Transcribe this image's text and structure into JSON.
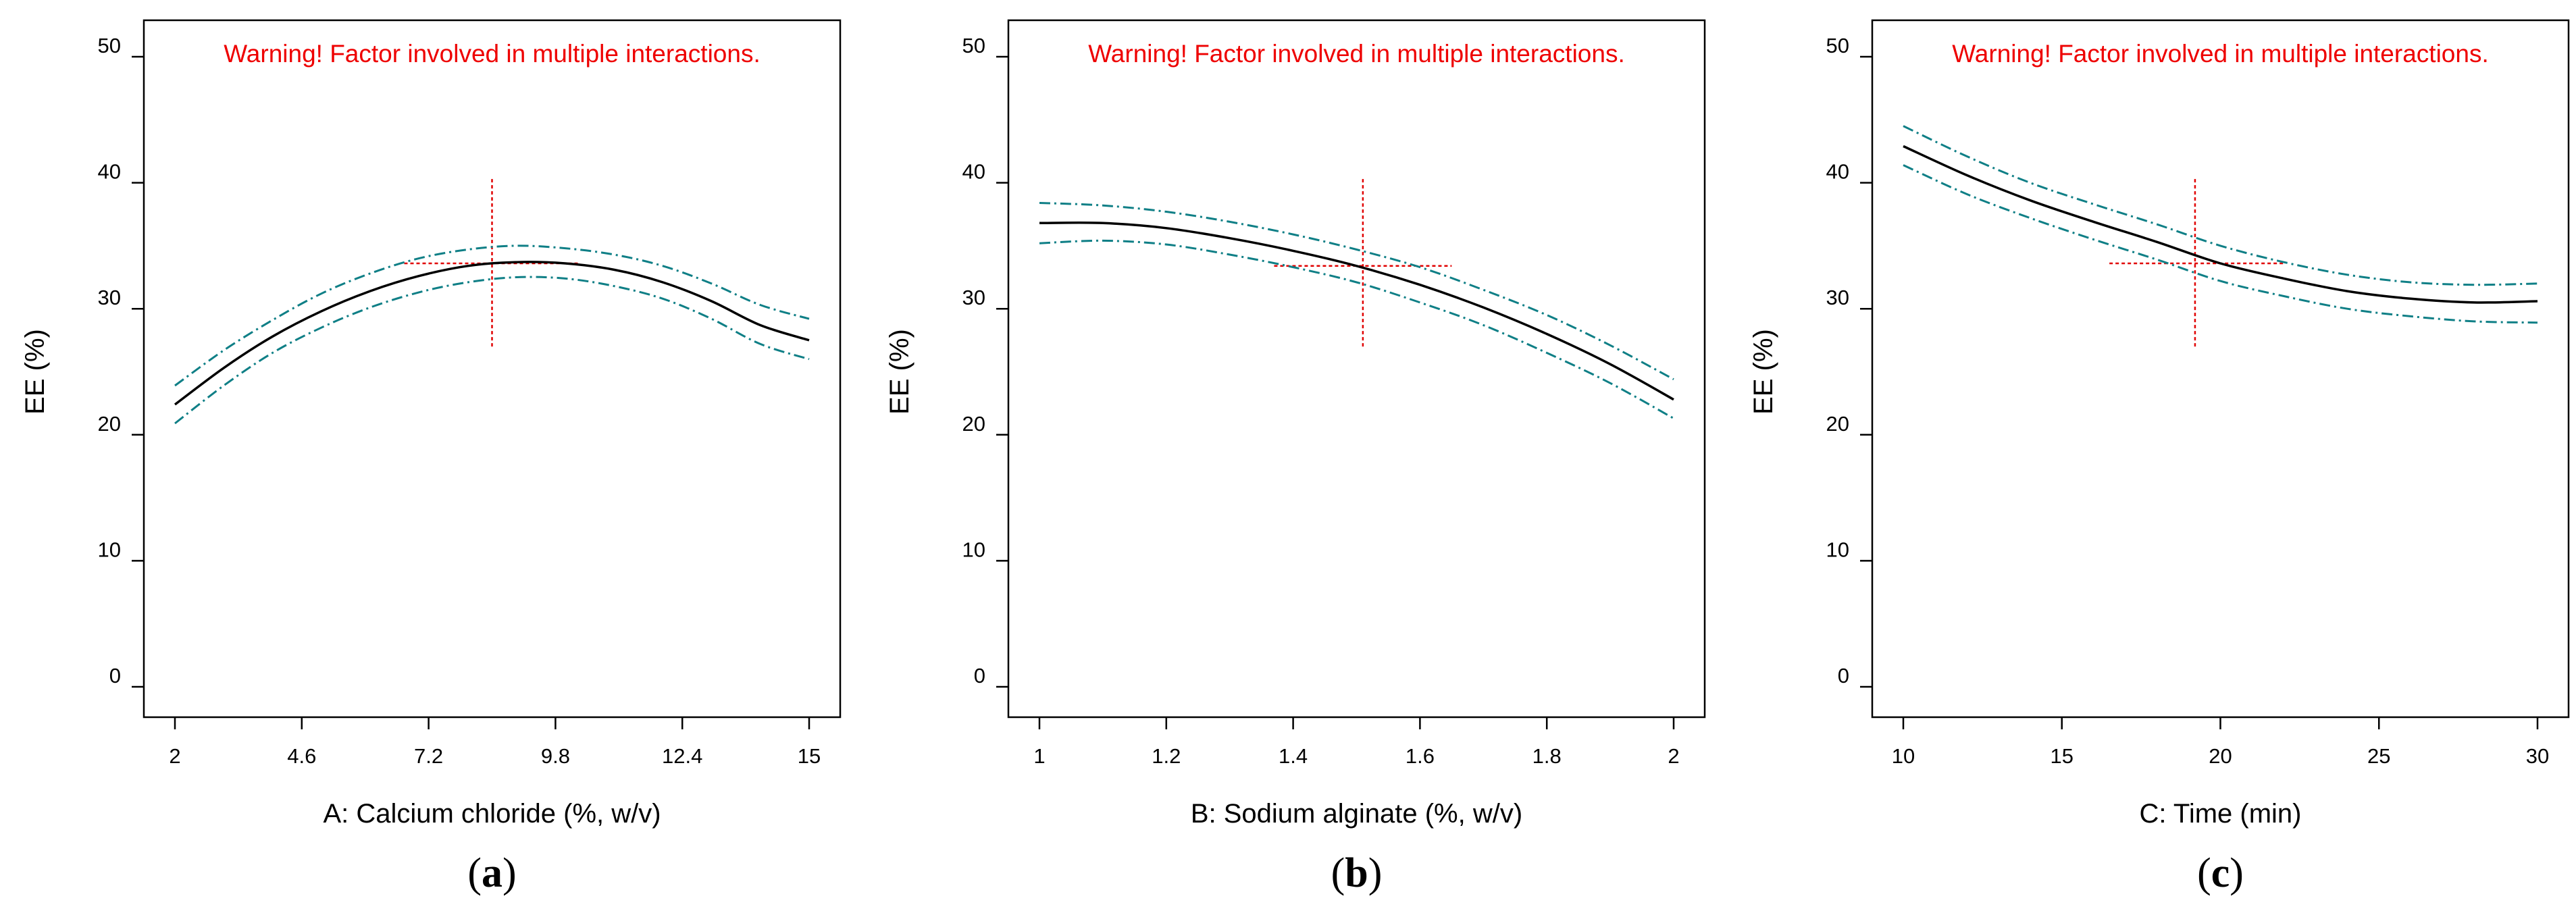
{
  "chart_data": [
    {
      "type": "line",
      "panel_label": "a",
      "warning": "Warning! Factor involved in multiple interactions.",
      "xlabel": "A: Calcium chloride (%, w/v)",
      "ylabel": "EE  (%)",
      "xlim": [
        2,
        15
      ],
      "ylim": [
        0,
        50
      ],
      "x_ticks": [
        "2",
        "4.6",
        "7.2",
        "9.8",
        "12.4",
        "15"
      ],
      "x_tick_values": [
        2,
        4.6,
        7.2,
        9.8,
        12.4,
        15
      ],
      "y_ticks": [
        "0",
        "10",
        "20",
        "30",
        "40",
        "50"
      ],
      "y_tick_values": [
        0,
        10,
        20,
        30,
        40,
        50
      ],
      "x": [
        2,
        3,
        4,
        5,
        6,
        7,
        8,
        9,
        10,
        11,
        12,
        13,
        14,
        15
      ],
      "series": [
        {
          "name": "prediction",
          "values": [
            22.4,
            25.3,
            27.8,
            29.8,
            31.4,
            32.6,
            33.4,
            33.7,
            33.6,
            33.1,
            32.1,
            30.6,
            28.7,
            27.5
          ]
        },
        {
          "name": "upper 95% CI",
          "values": [
            23.9,
            26.7,
            29.1,
            31.2,
            32.8,
            34.0,
            34.7,
            35.0,
            34.8,
            34.3,
            33.4,
            32.0,
            30.3,
            29.2
          ]
        },
        {
          "name": "lower 95% CI",
          "values": [
            20.9,
            23.9,
            26.5,
            28.5,
            30.1,
            31.3,
            32.1,
            32.5,
            32.4,
            31.8,
            30.8,
            29.2,
            27.2,
            26.0
          ]
        }
      ],
      "reference_point": {
        "x": 8.5,
        "y": 33.6,
        "x_range": [
          6.7,
          10.3
        ],
        "y_range": [
          27.0,
          40.5
        ]
      }
    },
    {
      "type": "line",
      "panel_label": "b",
      "warning": "Warning! Factor involved in multiple interactions.",
      "xlabel": "B: Sodium alginate (%, w/v)",
      "ylabel": "EE  (%)",
      "xlim": [
        1,
        2
      ],
      "ylim": [
        0,
        50
      ],
      "x_ticks": [
        "1",
        "1.2",
        "1.4",
        "1.6",
        "1.8",
        "2"
      ],
      "x_tick_values": [
        1,
        1.2,
        1.4,
        1.6,
        1.8,
        2
      ],
      "y_ticks": [
        "0",
        "10",
        "20",
        "30",
        "40",
        "50"
      ],
      "y_tick_values": [
        0,
        10,
        20,
        30,
        40,
        50
      ],
      "x": [
        1.0,
        1.1,
        1.2,
        1.3,
        1.4,
        1.5,
        1.6,
        1.7,
        1.8,
        1.9,
        2.0
      ],
      "series": [
        {
          "name": "prediction",
          "values": [
            36.8,
            36.8,
            36.4,
            35.6,
            34.6,
            33.4,
            31.9,
            30.1,
            28.0,
            25.6,
            22.8
          ]
        },
        {
          "name": "upper 95% CI",
          "values": [
            38.4,
            38.2,
            37.7,
            36.9,
            35.9,
            34.7,
            33.3,
            31.5,
            29.5,
            27.1,
            24.4
          ]
        },
        {
          "name": "lower 95% CI",
          "values": [
            35.2,
            35.4,
            35.1,
            34.3,
            33.3,
            32.1,
            30.5,
            28.7,
            26.5,
            24.1,
            21.3
          ]
        }
      ],
      "reference_point": {
        "x": 1.51,
        "y": 33.4,
        "x_range": [
          1.37,
          1.65
        ],
        "y_range": [
          27.0,
          40.5
        ]
      }
    },
    {
      "type": "line",
      "panel_label": "c",
      "warning": "Warning! Factor involved in multiple interactions.",
      "xlabel": "C: Time (min)",
      "ylabel": "EE  (%)",
      "xlim": [
        10,
        30
      ],
      "ylim": [
        0,
        50
      ],
      "x_ticks": [
        "10",
        "15",
        "20",
        "25",
        "30"
      ],
      "x_tick_values": [
        10,
        15,
        20,
        25,
        30
      ],
      "y_ticks": [
        "0",
        "10",
        "20",
        "30",
        "40",
        "50"
      ],
      "y_tick_values": [
        0,
        10,
        20,
        30,
        40,
        50
      ],
      "x": [
        10,
        12,
        14,
        16,
        18,
        20,
        22,
        24,
        26,
        28,
        30
      ],
      "series": [
        {
          "name": "prediction",
          "values": [
            42.9,
            40.6,
            38.6,
            36.9,
            35.3,
            33.6,
            32.4,
            31.4,
            30.8,
            30.5,
            30.6
          ]
        },
        {
          "name": "upper 95% CI",
          "values": [
            44.5,
            42.1,
            40.0,
            38.3,
            36.7,
            35.0,
            33.7,
            32.7,
            32.1,
            31.9,
            32.0
          ]
        },
        {
          "name": "lower 95% CI",
          "values": [
            41.4,
            39.1,
            37.2,
            35.5,
            33.9,
            32.2,
            31.0,
            30.0,
            29.4,
            29.0,
            28.9
          ]
        }
      ],
      "reference_point": {
        "x": 19.2,
        "y": 33.6,
        "x_range": [
          16.5,
          22.0
        ],
        "y_range": [
          27.0,
          40.5
        ]
      }
    }
  ],
  "colors": {
    "prediction_line": "#000000",
    "ci_line": "#0f7f86",
    "reference_line": "#e00000",
    "warning_text": "#ee0000"
  }
}
